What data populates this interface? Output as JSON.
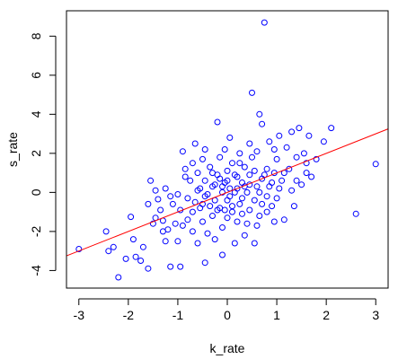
{
  "chart_data": {
    "type": "scatter",
    "title": "",
    "xlabel": "k_rate",
    "ylabel": "s_rate",
    "xlim": [
      -3.25,
      3.25
    ],
    "ylim": [
      -4.9,
      9.3
    ],
    "xticks": [
      -3,
      -2,
      -1,
      0,
      1,
      2,
      3
    ],
    "yticks": [
      -4,
      -2,
      0,
      2,
      4,
      6,
      8
    ],
    "grid": false,
    "point_color": "#0000ff",
    "line_color": "#ff0000",
    "fit_line": {
      "intercept": 0.0,
      "slope": 1.0
    },
    "points": [
      [
        -3.0,
        -2.9
      ],
      [
        -2.45,
        -2.0
      ],
      [
        -2.4,
        -3.0
      ],
      [
        -2.2,
        -4.35
      ],
      [
        -2.05,
        -3.4
      ],
      [
        -1.95,
        -1.25
      ],
      [
        -1.85,
        -3.3
      ],
      [
        -1.75,
        -3.5
      ],
      [
        -1.6,
        -0.6
      ],
      [
        -1.6,
        -3.9
      ],
      [
        -1.55,
        0.6
      ],
      [
        -1.5,
        -1.6
      ],
      [
        -1.45,
        -1.3
      ],
      [
        -1.45,
        0.1
      ],
      [
        -1.4,
        -0.35
      ],
      [
        -1.3,
        -1.45
      ],
      [
        -1.3,
        -2.0
      ],
      [
        -1.25,
        -2.5
      ],
      [
        -1.2,
        -1.9
      ],
      [
        -1.15,
        -3.8
      ],
      [
        -1.1,
        -0.6
      ],
      [
        -1.05,
        -1.6
      ],
      [
        -1.0,
        -2.5
      ],
      [
        -0.95,
        -3.8
      ],
      [
        -0.9,
        2.1
      ],
      [
        -0.85,
        1.2
      ],
      [
        -0.8,
        -0.3
      ],
      [
        -0.75,
        0.6
      ],
      [
        -0.7,
        1.5
      ],
      [
        -0.7,
        -1.0
      ],
      [
        -0.65,
        2.5
      ],
      [
        -0.6,
        -2.6
      ],
      [
        -0.6,
        0.1
      ],
      [
        -0.55,
        -0.8
      ],
      [
        -0.5,
        1.7
      ],
      [
        -0.5,
        -1.5
      ],
      [
        -0.45,
        -3.6
      ],
      [
        -0.45,
        0.6
      ],
      [
        -0.4,
        -0.1
      ],
      [
        -0.4,
        -2.1
      ],
      [
        -0.35,
        1.3
      ],
      [
        -0.3,
        0.3
      ],
      [
        -0.3,
        -1.2
      ],
      [
        -0.25,
        -0.4
      ],
      [
        -0.25,
        -2.4
      ],
      [
        -0.2,
        0.9
      ],
      [
        -0.2,
        3.6
      ],
      [
        -0.15,
        -0.8
      ],
      [
        -0.15,
        1.8
      ],
      [
        -0.1,
        0.0
      ],
      [
        -0.1,
        -1.8
      ],
      [
        -0.1,
        -3.2
      ],
      [
        -0.05,
        0.5
      ],
      [
        -0.05,
        2.2
      ],
      [
        0.0,
        -0.4
      ],
      [
        0.0,
        1.1
      ],
      [
        0.0,
        -1.3
      ],
      [
        0.05,
        0.2
      ],
      [
        0.05,
        2.8
      ],
      [
        0.1,
        -0.7
      ],
      [
        0.1,
        1.5
      ],
      [
        0.15,
        0.0
      ],
      [
        0.15,
        -2.6
      ],
      [
        0.2,
        0.8
      ],
      [
        0.2,
        -1.5
      ],
      [
        0.25,
        2.0
      ],
      [
        0.3,
        -0.3
      ],
      [
        0.3,
        0.5
      ],
      [
        0.35,
        1.3
      ],
      [
        0.35,
        -2.2
      ],
      [
        0.4,
        0.0
      ],
      [
        0.45,
        -0.9
      ],
      [
        0.45,
        0.9
      ],
      [
        0.5,
        5.1
      ],
      [
        0.5,
        1.8
      ],
      [
        0.55,
        -0.4
      ],
      [
        0.55,
        -2.6
      ],
      [
        0.6,
        0.3
      ],
      [
        0.6,
        2.1
      ],
      [
        0.65,
        4.0
      ],
      [
        0.65,
        -1.2
      ],
      [
        0.7,
        0.7
      ],
      [
        0.7,
        3.5
      ],
      [
        0.75,
        8.7
      ],
      [
        0.8,
        -0.2
      ],
      [
        0.8,
        1.2
      ],
      [
        0.85,
        2.6
      ],
      [
        0.9,
        -0.7
      ],
      [
        0.9,
        0.5
      ],
      [
        0.95,
        2.2
      ],
      [
        1.0,
        1.7
      ],
      [
        1.0,
        -0.3
      ],
      [
        1.05,
        2.9
      ],
      [
        1.1,
        0.6
      ],
      [
        1.15,
        -1.4
      ],
      [
        1.2,
        2.3
      ],
      [
        1.25,
        1.2
      ],
      [
        1.3,
        3.1
      ],
      [
        1.3,
        0.1
      ],
      [
        1.35,
        -0.7
      ],
      [
        1.4,
        1.8
      ],
      [
        1.45,
        3.3
      ],
      [
        1.5,
        0.4
      ],
      [
        1.55,
        2.0
      ],
      [
        1.6,
        1.5
      ],
      [
        1.65,
        2.9
      ],
      [
        1.7,
        0.8
      ],
      [
        1.8,
        1.7
      ],
      [
        1.95,
        2.6
      ],
      [
        2.1,
        3.3
      ],
      [
        2.6,
        -1.1
      ],
      [
        3.0,
        1.45
      ],
      [
        -1.35,
        -0.9
      ],
      [
        -1.15,
        -0.2
      ],
      [
        -0.95,
        -0.9
      ],
      [
        -0.8,
        -1.4
      ],
      [
        -0.65,
        -0.5
      ],
      [
        -0.55,
        0.2
      ],
      [
        -0.45,
        -0.2
      ],
      [
        -0.35,
        -0.7
      ],
      [
        -0.25,
        0.4
      ],
      [
        -0.15,
        0.7
      ],
      [
        -0.05,
        -0.9
      ],
      [
        0.05,
        -0.2
      ],
      [
        0.15,
        0.9
      ],
      [
        0.25,
        -0.6
      ],
      [
        0.35,
        0.3
      ],
      [
        0.45,
        0.4
      ],
      [
        0.55,
        1.1
      ],
      [
        0.65,
        0.0
      ],
      [
        0.75,
        0.9
      ],
      [
        0.85,
        0.3
      ],
      [
        0.95,
        1.0
      ],
      [
        1.05,
        0.2
      ],
      [
        1.15,
        1.0
      ],
      [
        0.25,
        1.5
      ],
      [
        -0.2,
        -0.9
      ],
      [
        0.1,
        -1.0
      ],
      [
        -0.5,
        -0.6
      ],
      [
        0.4,
        -1.6
      ],
      [
        -0.3,
        1.0
      ],
      [
        0.2,
        0.2
      ],
      [
        -0.9,
        -1.7
      ],
      [
        -1.0,
        -0.1
      ],
      [
        -0.7,
        -2.0
      ],
      [
        0.6,
        -1.7
      ],
      [
        0.7,
        -0.6
      ],
      [
        0.3,
        -1.1
      ],
      [
        -0.1,
        0.3
      ],
      [
        0.0,
        0.6
      ],
      [
        -0.6,
        1.0
      ],
      [
        1.4,
        0.6
      ],
      [
        -1.25,
        0.2
      ],
      [
        -0.85,
        0.8
      ],
      [
        0.45,
        2.5
      ],
      [
        0.8,
        -1.0
      ],
      [
        1.6,
        1.0
      ],
      [
        -1.9,
        -2.4
      ],
      [
        -2.3,
        -2.8
      ],
      [
        -1.7,
        -2.8
      ],
      [
        -0.45,
        2.2
      ],
      [
        0.95,
        -1.5
      ]
    ]
  }
}
